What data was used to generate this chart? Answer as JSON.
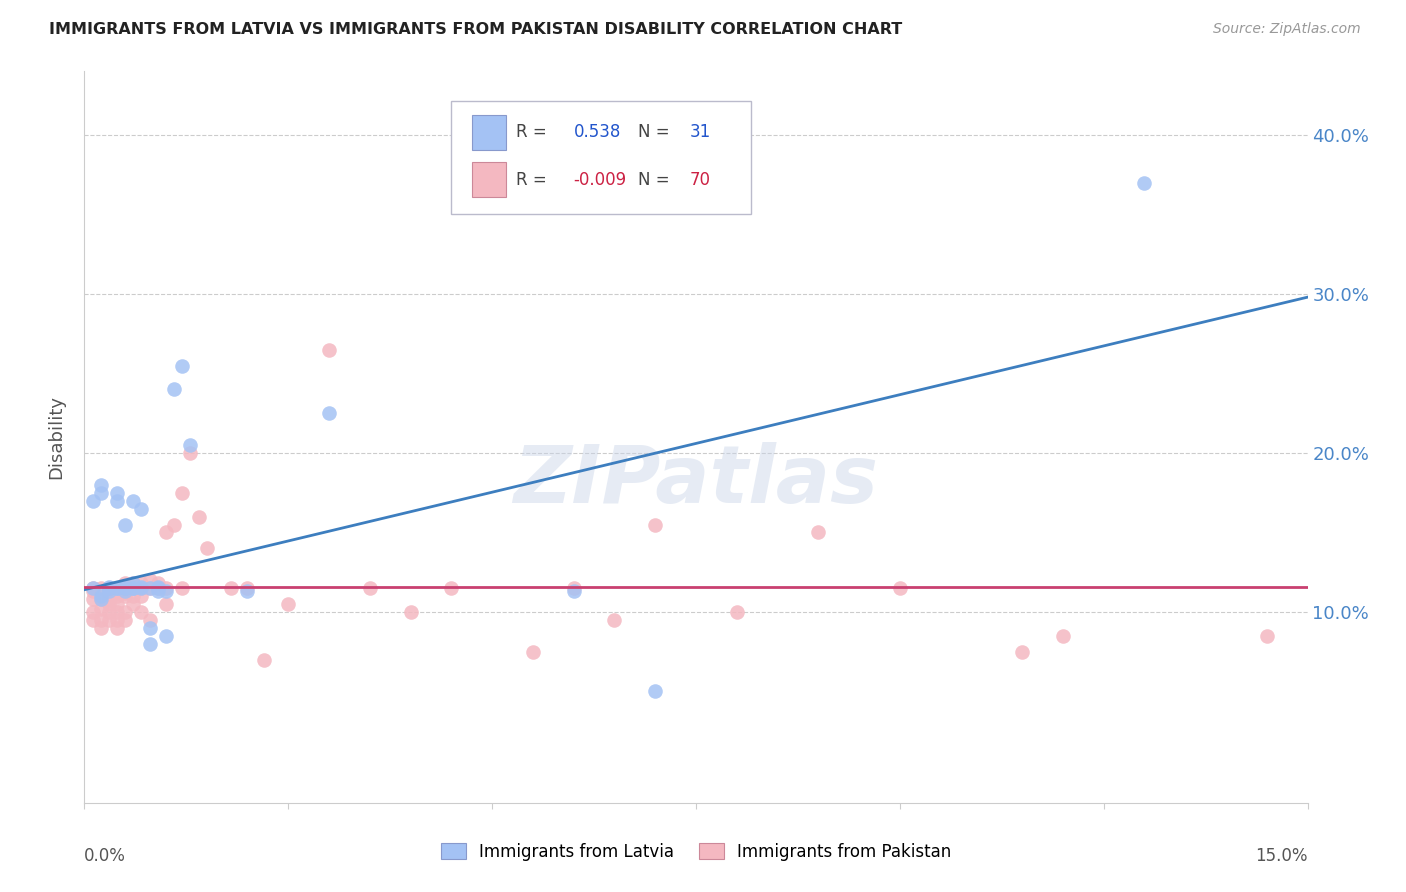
{
  "title": "IMMIGRANTS FROM LATVIA VS IMMIGRANTS FROM PAKISTAN DISABILITY CORRELATION CHART",
  "source": "Source: ZipAtlas.com",
  "ylabel": "Disability",
  "xlim": [
    0.0,
    0.15
  ],
  "ylim": [
    -0.02,
    0.44
  ],
  "yticks": [
    0.1,
    0.2,
    0.3,
    0.4
  ],
  "ytick_labels": [
    "10.0%",
    "20.0%",
    "30.0%",
    "40.0%"
  ],
  "legend_latvia_R": "0.538",
  "legend_latvia_N": "31",
  "legend_pakistan_R": "-0.009",
  "legend_pakistan_N": "70",
  "color_latvia": "#a4c2f4",
  "color_pakistan": "#f4b8c1",
  "color_trendline_latvia": "#3d7ebf",
  "color_trendline_pakistan": "#c94070",
  "watermark": "ZIPatlas",
  "trendline_latvia": [
    0.0,
    0.15,
    0.114,
    0.298
  ],
  "trendline_pakistan": [
    0.0,
    0.15,
    0.116,
    0.116
  ],
  "latvia_x": [
    0.001,
    0.002,
    0.002,
    0.003,
    0.003,
    0.004,
    0.004,
    0.004,
    0.005,
    0.005,
    0.006,
    0.006,
    0.007,
    0.007,
    0.008,
    0.008,
    0.009,
    0.009,
    0.01,
    0.011,
    0.012,
    0.013,
    0.02,
    0.03,
    0.06,
    0.07,
    0.13
  ],
  "latvia_y": [
    0.17,
    0.175,
    0.18,
    0.115,
    0.115,
    0.17,
    0.175,
    0.115,
    0.155,
    0.115,
    0.17,
    0.115,
    0.165,
    0.115,
    0.09,
    0.08,
    0.115,
    0.113,
    0.085,
    0.24,
    0.255,
    0.205,
    0.113,
    0.225,
    0.113,
    0.05,
    0.37
  ],
  "latvia_x_cluster": [
    0.001,
    0.002,
    0.002,
    0.003,
    0.003,
    0.003,
    0.004,
    0.005,
    0.005,
    0.006,
    0.006,
    0.007,
    0.008,
    0.009,
    0.01
  ],
  "latvia_y_cluster": [
    0.115,
    0.11,
    0.108,
    0.113,
    0.115,
    0.116,
    0.115,
    0.113,
    0.115,
    0.115,
    0.118,
    0.116,
    0.115,
    0.116,
    0.113
  ],
  "pakistan_x": [
    0.001,
    0.001,
    0.001,
    0.001,
    0.001,
    0.002,
    0.002,
    0.002,
    0.002,
    0.002,
    0.003,
    0.003,
    0.003,
    0.003,
    0.003,
    0.003,
    0.003,
    0.004,
    0.004,
    0.004,
    0.004,
    0.004,
    0.004,
    0.004,
    0.005,
    0.005,
    0.005,
    0.005,
    0.005,
    0.005,
    0.006,
    0.006,
    0.006,
    0.006,
    0.007,
    0.007,
    0.007,
    0.007,
    0.008,
    0.008,
    0.008,
    0.009,
    0.009,
    0.01,
    0.01,
    0.01,
    0.011,
    0.012,
    0.012,
    0.013,
    0.014,
    0.015,
    0.018,
    0.02,
    0.022,
    0.025,
    0.03,
    0.035,
    0.04,
    0.045,
    0.055,
    0.06,
    0.065,
    0.07,
    0.08,
    0.09,
    0.1,
    0.115,
    0.12,
    0.145
  ],
  "pakistan_y": [
    0.113,
    0.108,
    0.1,
    0.095,
    0.115,
    0.115,
    0.108,
    0.102,
    0.095,
    0.09,
    0.115,
    0.112,
    0.108,
    0.105,
    0.1,
    0.095,
    0.115,
    0.115,
    0.112,
    0.11,
    0.105,
    0.1,
    0.095,
    0.09,
    0.118,
    0.115,
    0.112,
    0.11,
    0.1,
    0.095,
    0.118,
    0.115,
    0.11,
    0.105,
    0.118,
    0.115,
    0.11,
    0.1,
    0.12,
    0.115,
    0.095,
    0.118,
    0.115,
    0.15,
    0.115,
    0.105,
    0.155,
    0.175,
    0.115,
    0.2,
    0.16,
    0.14,
    0.115,
    0.115,
    0.07,
    0.105,
    0.265,
    0.115,
    0.1,
    0.115,
    0.075,
    0.115,
    0.095,
    0.155,
    0.1,
    0.15,
    0.115,
    0.075,
    0.085,
    0.085
  ]
}
